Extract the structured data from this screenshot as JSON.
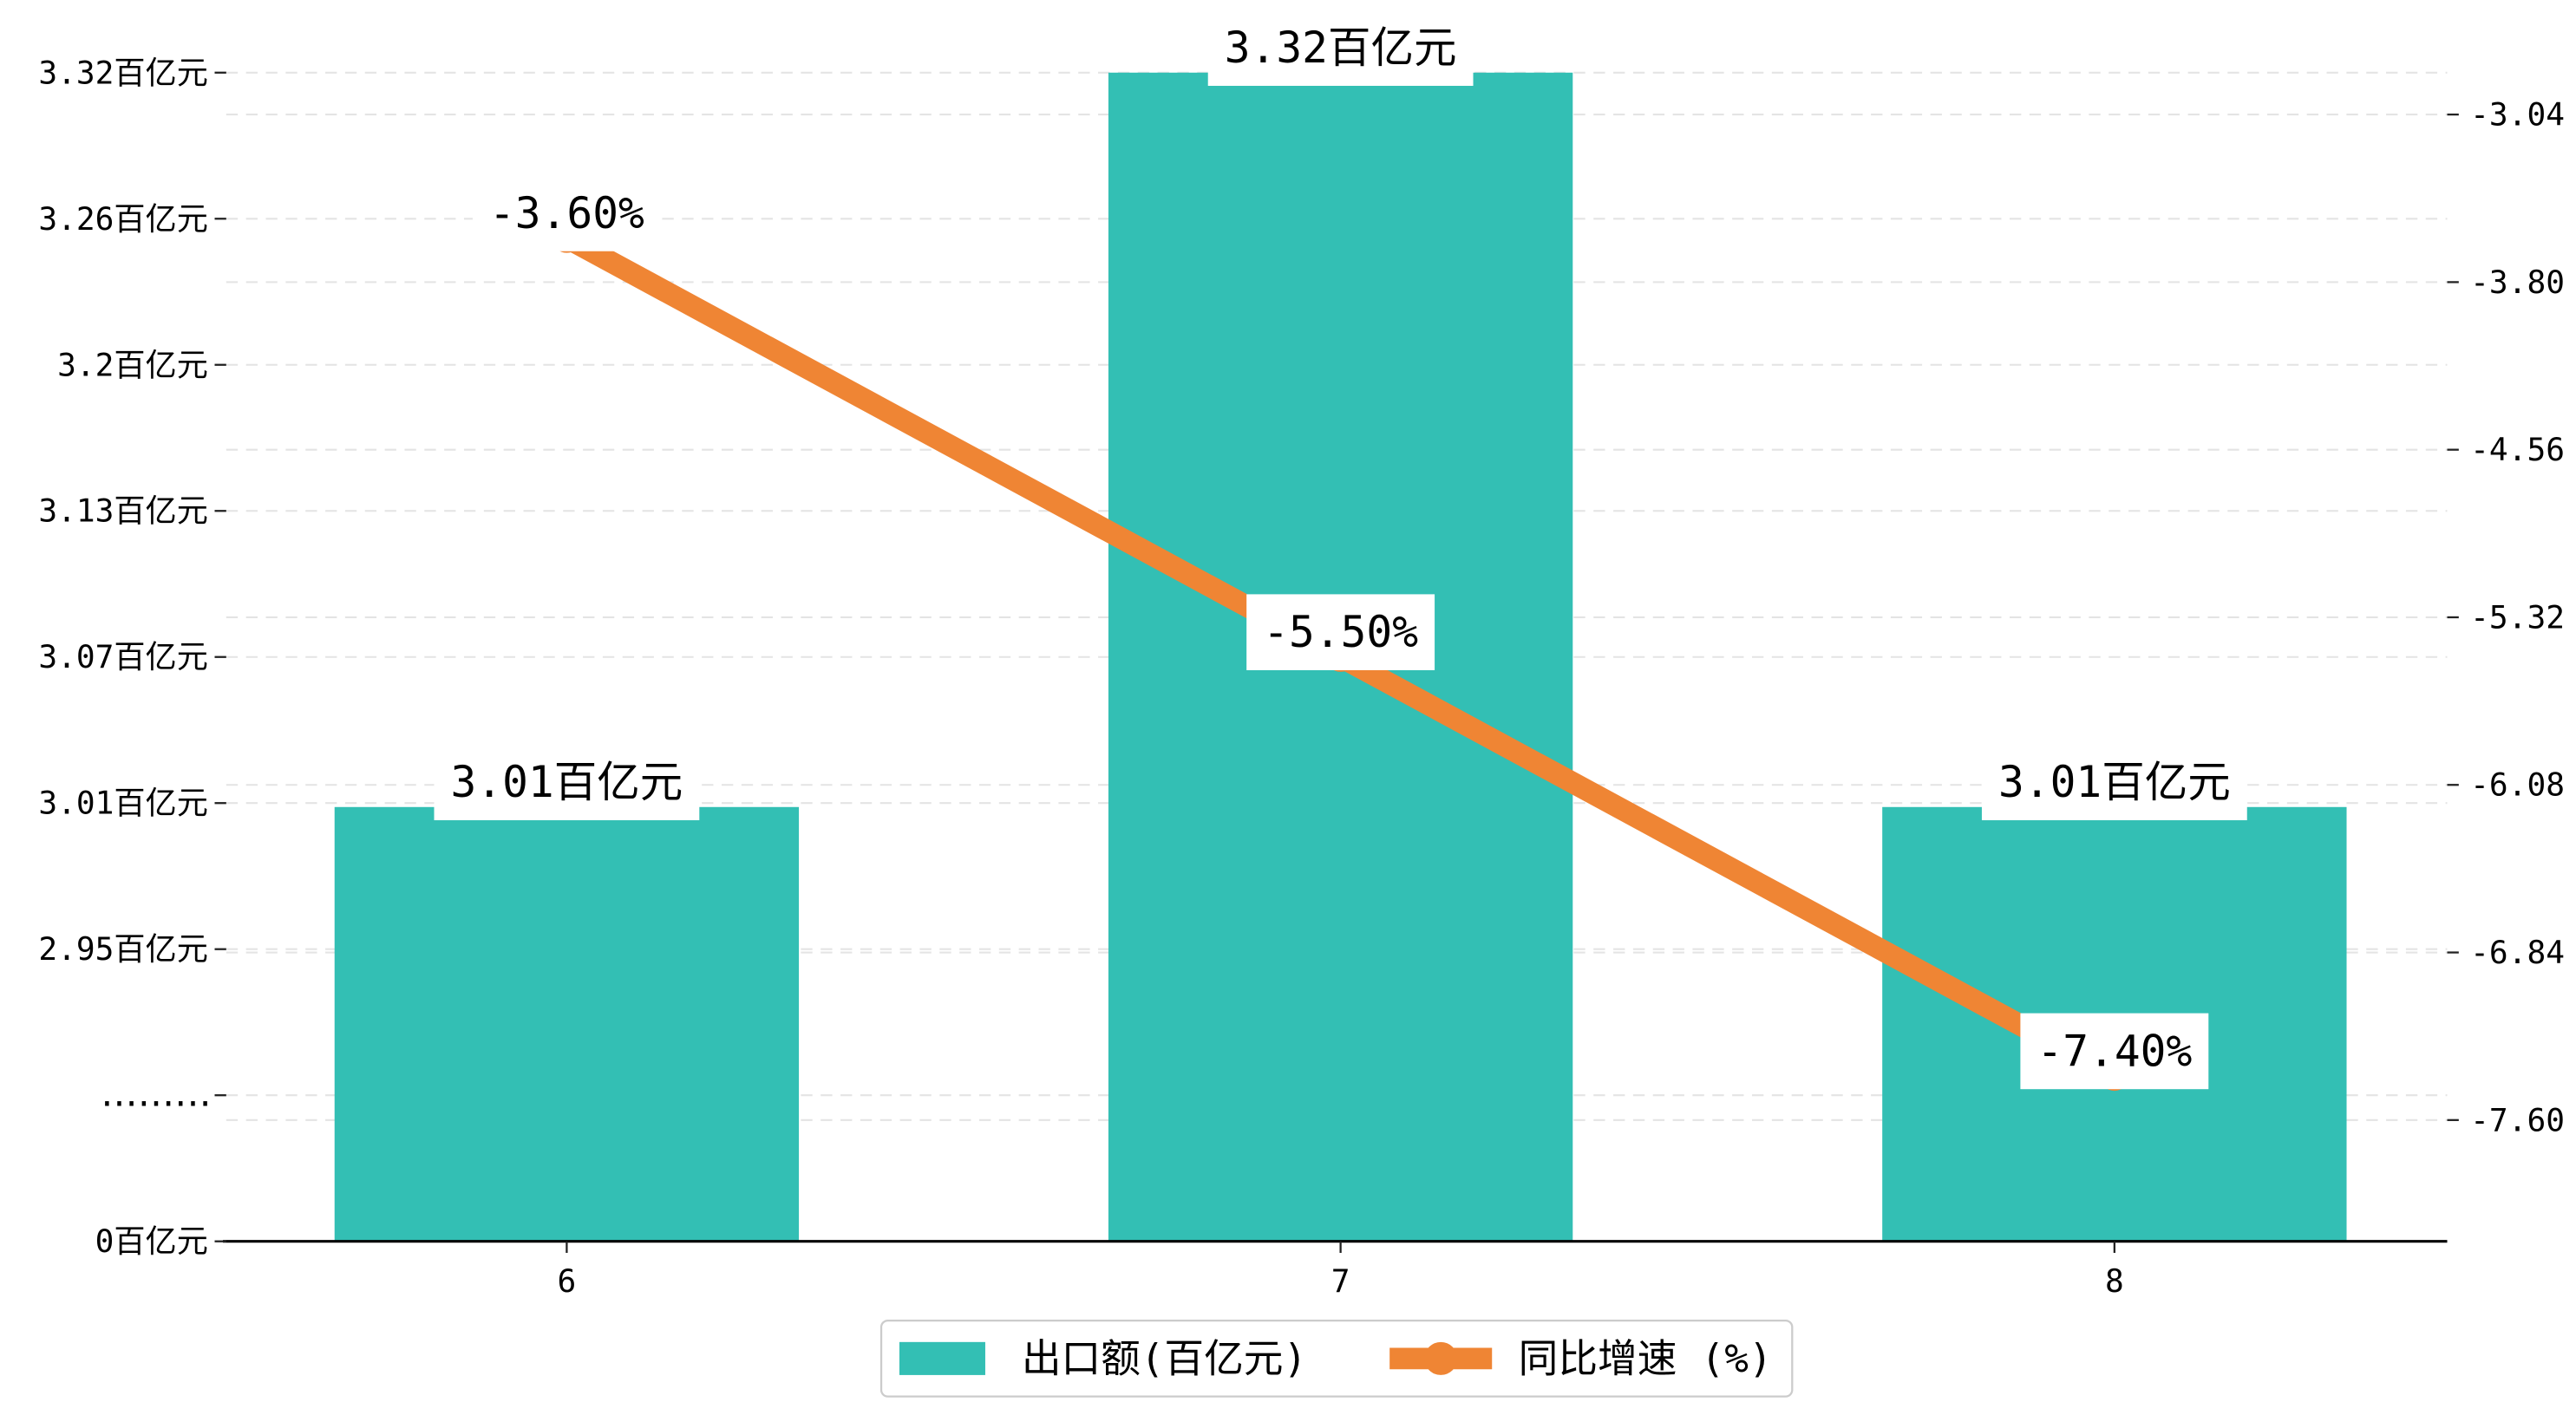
{
  "chart_data": {
    "type": "bar",
    "categories": [
      "6",
      "7",
      "8"
    ],
    "series": [
      {
        "name": "出口额(百亿元)",
        "type": "bar",
        "axis": "left",
        "values": [
          3.01,
          3.32,
          3.01
        ],
        "data_labels": [
          "3.01百亿元",
          "3.32百亿元",
          "3.01百亿元"
        ],
        "color": "#33BFB4"
      },
      {
        "name": "同比增速 (%)",
        "type": "line",
        "axis": "right",
        "values": [
          -3.6,
          -5.5,
          -7.4
        ],
        "data_labels": [
          "-3.60%",
          "-5.50%",
          "-7.40%"
        ],
        "color": "#EF8534"
      }
    ],
    "y_left": {
      "broken": true,
      "ylim": [
        2.95,
        3.32
      ],
      "ticks": [
        0,
        null,
        2.95,
        3.01,
        3.07,
        3.13,
        3.2,
        3.26,
        3.32
      ],
      "tick_labels": [
        "0百亿元",
        ".........",
        "2.95百亿元",
        "3.01百亿元",
        "3.07百亿元",
        "3.13百亿元",
        "3.2百亿元",
        "3.26百亿元",
        "3.32百亿元"
      ]
    },
    "y_right": {
      "ylim": [
        -8.15,
        -2.85
      ],
      "ticks": [
        -3.04,
        -3.8,
        -4.56,
        -5.32,
        -6.08,
        -6.84,
        -7.6
      ],
      "tick_labels": [
        "-3.04",
        "-3.80",
        "-4.56",
        "-5.32",
        "-6.08",
        "-6.84",
        "-7.60"
      ]
    },
    "grid": true,
    "legend": "bottom-center"
  }
}
